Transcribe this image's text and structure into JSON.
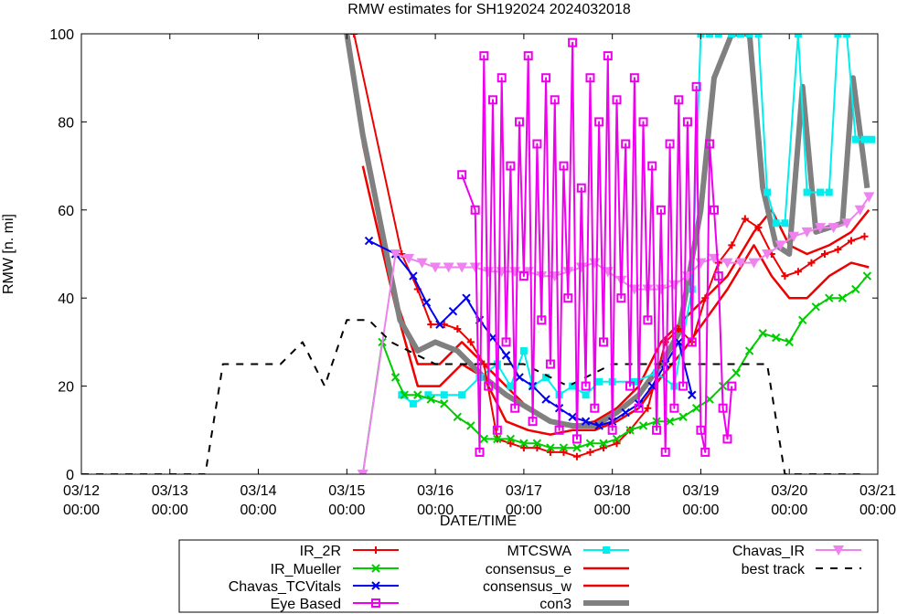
{
  "chart_data": {
    "type": "line",
    "title": "RMW estimates for SH192024 2024032018",
    "xlabel": "DATE/TIME",
    "ylabel": "RMW [n. mi]",
    "ylim": [
      0,
      100
    ],
    "xlim": [
      0,
      9
    ],
    "yticks": [
      {
        "value": 0,
        "label": "0"
      },
      {
        "value": 20,
        "label": "20"
      },
      {
        "value": 40,
        "label": "40"
      },
      {
        "value": 60,
        "label": "60"
      },
      {
        "value": 80,
        "label": "80"
      },
      {
        "value": 100,
        "label": "100"
      }
    ],
    "xticks": [
      {
        "value": 0,
        "line1": "03/12",
        "line2": "00:00"
      },
      {
        "value": 1,
        "line1": "03/13",
        "line2": "00:00"
      },
      {
        "value": 2,
        "line1": "03/14",
        "line2": "00:00"
      },
      {
        "value": 3,
        "line1": "03/15",
        "line2": "00:00"
      },
      {
        "value": 4,
        "line1": "03/16",
        "line2": "00:00"
      },
      {
        "value": 5,
        "line1": "03/17",
        "line2": "00:00"
      },
      {
        "value": 6,
        "line1": "03/18",
        "line2": "00:00"
      },
      {
        "value": 7,
        "line1": "03/19",
        "line2": "00:00"
      },
      {
        "value": 8,
        "line1": "03/20",
        "line2": "00:00"
      },
      {
        "value": 9,
        "line1": "03/21",
        "line2": "00:00"
      }
    ],
    "series": [
      {
        "name": "consensus_w",
        "color": "#ee0000",
        "width": 2.5,
        "marker": "none",
        "dash": "",
        "x": [
          3.18,
          3.55,
          3.8,
          4.05,
          4.3,
          4.55,
          4.8,
          5.05,
          5.3,
          5.55,
          5.8,
          6.05,
          6.3,
          6.55,
          6.8,
          7.05,
          7.3,
          7.6,
          7.8,
          8.0,
          8.2,
          8.45,
          8.7,
          8.9
        ],
        "y": [
          75,
          40,
          25,
          25,
          30,
          25,
          20,
          15,
          12,
          11,
          12,
          15,
          20,
          30,
          35,
          40,
          45,
          55,
          60,
          52,
          50,
          52,
          55,
          60
        ]
      },
      {
        "name": "consensus_e",
        "color": "#ee0000",
        "width": 2.5,
        "marker": "none",
        "dash": "",
        "x": [
          3.18,
          3.55,
          3.8,
          4.05,
          4.3,
          4.55,
          4.8,
          5.05,
          5.3,
          5.55,
          5.8,
          6.05,
          6.3,
          6.55,
          6.8,
          7.05,
          7.3,
          7.6,
          7.8,
          8.0,
          8.2,
          8.45,
          8.7,
          8.9
        ],
        "y": [
          70,
          38,
          20,
          20,
          25,
          22,
          12,
          10,
          9,
          10,
          10,
          12,
          15,
          22,
          28,
          35,
          42,
          52,
          45,
          40,
          40,
          45,
          48,
          47
        ]
      },
      {
        "name": "con3",
        "color": "#808080",
        "width": 6,
        "marker": "none",
        "dash": "",
        "x": [
          3.0,
          3.18,
          3.4,
          3.6,
          3.8,
          4.0,
          4.25,
          4.55,
          4.8,
          5.05,
          5.3,
          5.55,
          5.8,
          6.05,
          6.3,
          6.55,
          6.75,
          7.0,
          7.15,
          7.35,
          7.55,
          7.7,
          7.85,
          8.0,
          8.15,
          8.3,
          8.45,
          8.6,
          8.72,
          8.88
        ],
        "y": [
          100,
          77,
          55,
          35,
          28,
          30,
          28,
          22,
          18,
          15,
          12,
          11,
          11,
          14,
          18,
          25,
          32,
          60,
          90,
          100,
          100,
          65,
          52,
          50,
          88,
          55,
          56,
          57,
          90,
          65
        ]
      },
      {
        "name": "MTCSWA",
        "color": "#00eeee",
        "width": 2,
        "marker": "square",
        "dash": "",
        "x": [
          3.62,
          3.75,
          3.92,
          4.1,
          4.3,
          4.5,
          4.7,
          4.85,
          5.0,
          5.1,
          5.25,
          5.4,
          5.55,
          5.7,
          5.85,
          6.0,
          6.25,
          6.5,
          6.7,
          6.9,
          7.0,
          7.1,
          7.2,
          7.35,
          7.45,
          7.55,
          7.65,
          7.75,
          7.85,
          7.95,
          8.1,
          8.2,
          8.35,
          8.45,
          8.55,
          8.65,
          8.75,
          8.85,
          8.93
        ],
        "y": [
          18,
          16,
          18,
          18,
          18,
          22,
          25,
          20,
          28,
          20,
          22,
          18,
          20,
          18,
          21,
          21,
          21,
          23,
          20,
          42,
          100,
          100,
          100,
          100,
          100,
          100,
          100,
          64,
          57,
          57,
          100,
          64,
          64,
          64,
          100,
          100,
          76,
          76,
          76
        ]
      },
      {
        "name": "IR_2R",
        "color": "#ee0000",
        "width": 2,
        "marker": "plus",
        "dash": "",
        "x": [
          3.08,
          3.62,
          3.8,
          3.95,
          4.1,
          4.25,
          4.4,
          4.55,
          4.7,
          4.85,
          5.0,
          5.15,
          5.3,
          5.45,
          5.6,
          5.75,
          5.9,
          6.05,
          6.2,
          6.4,
          6.6,
          6.75,
          6.9,
          7.05,
          7.2,
          7.35,
          7.5,
          7.65,
          7.8,
          7.95,
          8.1,
          8.25,
          8.4,
          8.55,
          8.7,
          8.85
        ],
        "y": [
          100,
          50,
          42,
          34,
          34,
          33,
          30,
          25,
          8,
          7,
          6,
          6,
          5,
          5,
          4,
          5,
          6,
          7,
          10,
          15,
          30,
          33,
          30,
          40,
          48,
          52,
          58,
          56,
          50,
          45,
          46,
          48,
          50,
          51,
          53,
          54
        ]
      },
      {
        "name": "IR_Mueller",
        "color": "#00cc00",
        "width": 2,
        "marker": "x",
        "dash": "",
        "x": [
          3.18,
          3.4,
          3.55,
          3.65,
          3.8,
          3.95,
          4.1,
          4.25,
          4.4,
          4.55,
          4.7,
          4.85,
          5.0,
          5.15,
          5.3,
          5.45,
          5.6,
          5.75,
          5.9,
          6.05,
          6.2,
          6.35,
          6.5,
          6.65,
          6.8,
          6.95,
          7.1,
          7.25,
          7.4,
          7.55,
          7.7,
          7.85,
          8.0,
          8.15,
          8.3,
          8.45,
          8.6,
          8.75,
          8.88
        ],
        "y": [
          0,
          30,
          22,
          18,
          18,
          17,
          16,
          13,
          11,
          8,
          8,
          8,
          7,
          7,
          6,
          6,
          6,
          7,
          7,
          8,
          10,
          11,
          12,
          12,
          13,
          15,
          17,
          20,
          23,
          28,
          32,
          31,
          30,
          35,
          38,
          40,
          40,
          42,
          45
        ]
      },
      {
        "name": "Chavas_TCVitals",
        "color": "#0000ee",
        "width": 2,
        "marker": "x",
        "dash": "",
        "x": [
          3.25,
          3.55,
          3.75,
          3.9,
          4.05,
          4.2,
          4.35,
          4.5,
          4.65,
          4.8,
          4.95,
          5.1,
          5.25,
          5.4,
          5.55,
          5.7,
          5.85,
          6.0,
          6.15,
          6.3,
          6.45,
          6.6,
          6.75,
          6.9
        ],
        "y": [
          53,
          50,
          45,
          39,
          34,
          37,
          40,
          35,
          31,
          27,
          22,
          20,
          17,
          15,
          13,
          12,
          11,
          12,
          14,
          16,
          20,
          25,
          30,
          18
        ]
      },
      {
        "name": "Chavas_IR",
        "color": "#ee82ee",
        "width": 2,
        "marker": "triangle",
        "dash": "",
        "x": [
          3.18,
          3.55,
          3.7,
          3.85,
          4.0,
          4.15,
          4.3,
          4.45,
          4.6,
          4.75,
          4.9,
          5.05,
          5.2,
          5.35,
          5.5,
          5.65,
          5.8,
          5.95,
          6.1,
          6.25,
          6.4,
          6.55,
          6.7,
          6.85,
          7.0,
          7.15,
          7.3,
          7.45,
          7.6,
          7.75,
          7.9,
          8.05,
          8.2,
          8.35,
          8.5,
          8.65,
          8.8,
          8.9
        ],
        "y": [
          0,
          50,
          49,
          48,
          47,
          47,
          47,
          47,
          46,
          46,
          46,
          46,
          45,
          45,
          46,
          47,
          48,
          46,
          44,
          42,
          42,
          42,
          43,
          45,
          48,
          49,
          48,
          48,
          48,
          50,
          52,
          54,
          55,
          56,
          56,
          57,
          60,
          63
        ]
      },
      {
        "name": "best track",
        "color": "#000000",
        "width": 2,
        "marker": "none",
        "dash": "8,8",
        "x": [
          0.0,
          0.5,
          1.0,
          1.4,
          1.6,
          1.75,
          2.0,
          2.25,
          2.5,
          2.75,
          3.0,
          3.25,
          3.5,
          4.0,
          4.5,
          5.0,
          5.5,
          6.0,
          6.5,
          7.0,
          7.5,
          7.75,
          7.95,
          8.3,
          8.6,
          8.8
        ],
        "y": [
          0,
          0,
          0,
          0,
          25,
          25,
          25,
          25,
          30,
          20,
          35,
          35,
          30,
          25,
          25,
          25,
          20,
          25,
          25,
          25,
          25,
          25,
          0,
          0,
          0,
          0
        ]
      },
      {
        "name": "Eye Based",
        "color": "#ee00ee",
        "width": 2,
        "marker": "square_open",
        "dash": "",
        "x": [
          4.3,
          4.45,
          4.5,
          4.55,
          4.6,
          4.65,
          4.7,
          4.75,
          4.8,
          4.85,
          4.9,
          4.95,
          5.0,
          5.05,
          5.1,
          5.15,
          5.2,
          5.25,
          5.3,
          5.35,
          5.4,
          5.45,
          5.5,
          5.55,
          5.6,
          5.65,
          5.7,
          5.75,
          5.8,
          5.85,
          5.9,
          5.95,
          6.0,
          6.05,
          6.1,
          6.15,
          6.2,
          6.25,
          6.3,
          6.35,
          6.4,
          6.45,
          6.5,
          6.55,
          6.6,
          6.65,
          6.7,
          6.75,
          6.8,
          6.85,
          6.9,
          6.95,
          7.0,
          7.05,
          7.1,
          7.15,
          7.2,
          7.25,
          7.3,
          7.35
        ],
        "y": [
          68,
          60,
          5,
          95,
          20,
          85,
          10,
          90,
          30,
          70,
          15,
          80,
          45,
          95,
          12,
          75,
          35,
          90,
          25,
          85,
          10,
          70,
          40,
          98,
          8,
          65,
          20,
          90,
          15,
          80,
          30,
          95,
          10,
          85,
          40,
          75,
          20,
          90,
          15,
          80,
          35,
          70,
          10,
          60,
          5,
          75,
          15,
          85,
          20,
          80,
          30,
          88,
          10,
          5,
          75,
          60,
          45,
          15,
          8,
          20
        ]
      }
    ],
    "legend": {
      "position": "bottom",
      "items": [
        {
          "series": "IR_2R",
          "label": "IR_2R"
        },
        {
          "series": "IR_Mueller",
          "label": "IR_Mueller"
        },
        {
          "series": "Chavas_TCVitals",
          "label": "Chavas_TCVitals"
        },
        {
          "series": "Eye Based",
          "label": "Eye Based"
        },
        {
          "series": "MTCSWA",
          "label": "MTCSWA"
        },
        {
          "series": "consensus_e",
          "label": "consensus_e"
        },
        {
          "series": "consensus_w",
          "label": "consensus_w"
        },
        {
          "series": "con3",
          "label": "con3"
        },
        {
          "series": "Chavas_IR",
          "label": "Chavas_IR"
        },
        {
          "series": "best track",
          "label": "best track"
        }
      ]
    }
  }
}
